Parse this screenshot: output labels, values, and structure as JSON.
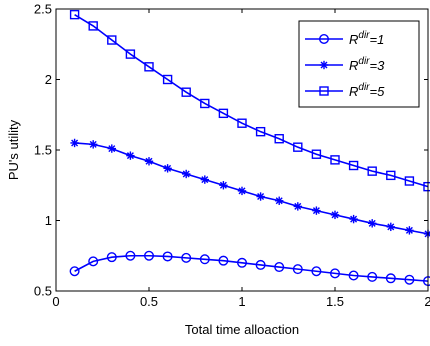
{
  "chart_data": {
    "type": "line",
    "title": "",
    "xlabel": "Total time alloaction",
    "ylabel": "PU's utility",
    "xlim": [
      0,
      2
    ],
    "ylim": [
      0.5,
      2.5
    ],
    "xticks": [
      0,
      0.5,
      1,
      1.5,
      2
    ],
    "xtick_labels": [
      "0",
      "0.5",
      "1",
      "1.5",
      "2"
    ],
    "yticks": [
      0.5,
      1,
      1.5,
      2,
      2.5
    ],
    "ytick_labels": [
      "0.5",
      "1",
      "1.5",
      "2",
      "2.5"
    ],
    "grid": false,
    "legend_position": "top-right",
    "color": "#0000ff",
    "x": [
      0.1,
      0.2,
      0.3,
      0.4,
      0.5,
      0.6,
      0.7,
      0.8,
      0.9,
      1.0,
      1.1,
      1.2,
      1.3,
      1.4,
      1.5,
      1.6,
      1.7,
      1.8,
      1.9,
      2.0
    ],
    "series": [
      {
        "name": "R^{dir}=1",
        "legend_base": "R",
        "legend_sup": "dir",
        "legend_tail": "=1",
        "marker": "circle",
        "values": [
          0.64,
          0.71,
          0.74,
          0.75,
          0.75,
          0.745,
          0.735,
          0.725,
          0.715,
          0.7,
          0.685,
          0.67,
          0.655,
          0.64,
          0.625,
          0.61,
          0.6,
          0.59,
          0.58,
          0.57
        ]
      },
      {
        "name": "R^{dir}=3",
        "legend_base": "R",
        "legend_sup": "dir",
        "legend_tail": "=3",
        "marker": "asterisk",
        "values": [
          1.55,
          1.54,
          1.51,
          1.46,
          1.42,
          1.37,
          1.33,
          1.29,
          1.25,
          1.21,
          1.17,
          1.14,
          1.1,
          1.07,
          1.04,
          1.01,
          0.98,
          0.955,
          0.93,
          0.905
        ]
      },
      {
        "name": "R^{dir}=5",
        "legend_base": "R",
        "legend_sup": "dir",
        "legend_tail": "=5",
        "marker": "square",
        "values": [
          2.46,
          2.38,
          2.28,
          2.18,
          2.09,
          2.0,
          1.91,
          1.83,
          1.76,
          1.69,
          1.63,
          1.58,
          1.52,
          1.47,
          1.43,
          1.39,
          1.35,
          1.32,
          1.28,
          1.24
        ]
      }
    ]
  }
}
